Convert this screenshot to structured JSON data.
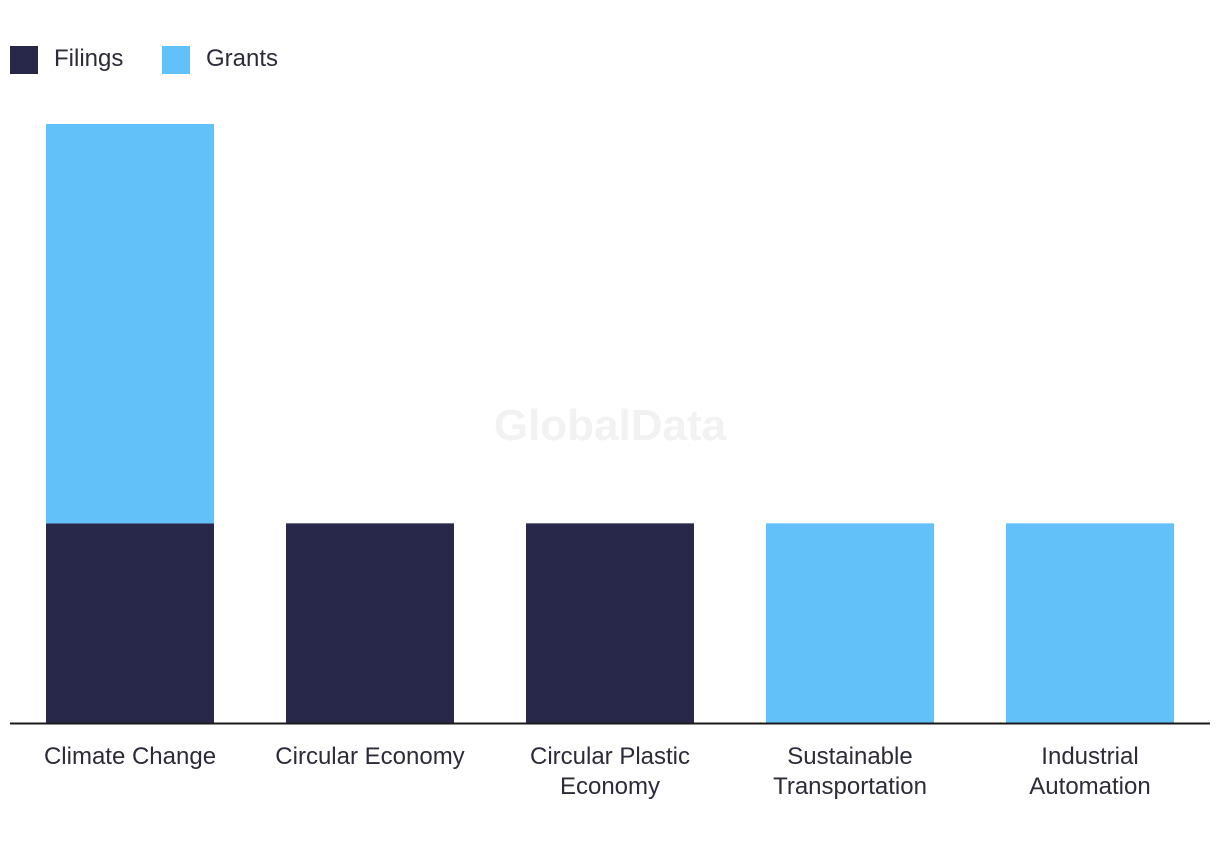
{
  "colors": {
    "filings": "#28284b",
    "grants": "#62c1f8",
    "axis": "#1a1a1a",
    "text": "#2b2b3a",
    "watermark": "#f2f2f2"
  },
  "watermark": "GlobalData",
  "chart_data": {
    "type": "bar",
    "stacked": true,
    "title": "",
    "xlabel": "",
    "ylabel": "",
    "ylim": [
      0,
      3
    ],
    "grid": false,
    "legend_position": "top-left",
    "categories": [
      [
        "Climate Change"
      ],
      [
        "Circular Economy"
      ],
      [
        "Circular Plastic",
        "Economy"
      ],
      [
        "Sustainable",
        "Transportation"
      ],
      [
        "Industrial",
        "Automation"
      ]
    ],
    "series": [
      {
        "name": "Filings",
        "color": "#28284b",
        "values": [
          1,
          1,
          1,
          0,
          0
        ]
      },
      {
        "name": "Grants",
        "color": "#62c1f8",
        "values": [
          2,
          0,
          0,
          1,
          1
        ]
      }
    ]
  }
}
